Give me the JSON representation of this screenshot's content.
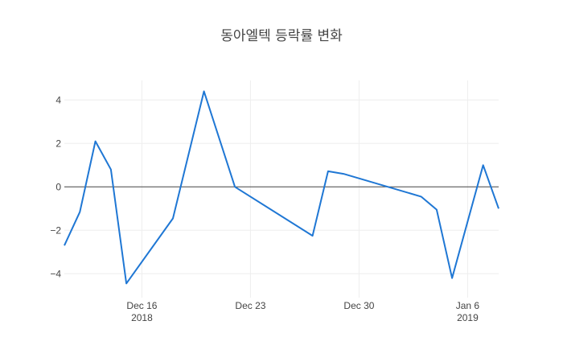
{
  "chart_data": {
    "type": "line",
    "title": "동아엘텍 등락률 변화",
    "xlabel": "",
    "ylabel": "",
    "x_range": [
      "2018-12-11",
      "2019-01-08"
    ],
    "ylim": [
      -5.1,
      4.9
    ],
    "y_ticks": [
      4,
      2,
      0,
      -2,
      -4
    ],
    "x_ticks": [
      {
        "date": "2018-12-16",
        "label": "Dec 16",
        "sublabel": "2018"
      },
      {
        "date": "2018-12-23",
        "label": "Dec 23",
        "sublabel": ""
      },
      {
        "date": "2018-12-30",
        "label": "Dec 30",
        "sublabel": ""
      },
      {
        "date": "2019-01-06",
        "label": "Jan 6",
        "sublabel": "2019"
      }
    ],
    "grid": true,
    "zero_line": true,
    "line_color": "#1f77d4",
    "series": [
      {
        "x": [
          "2018-12-11",
          "2018-12-12",
          "2018-12-13",
          "2018-12-14",
          "2018-12-15",
          "2018-12-18",
          "2018-12-20",
          "2018-12-22",
          "2018-12-27",
          "2018-12-28",
          "2018-12-29",
          "2019-01-03",
          "2019-01-04",
          "2019-01-05",
          "2019-01-07",
          "2019-01-08"
        ],
        "values": [
          -2.7,
          -1.15,
          2.1,
          0.8,
          -4.45,
          -1.45,
          4.4,
          0.0,
          -2.25,
          0.72,
          0.6,
          -0.45,
          -1.05,
          -4.2,
          1.0,
          -1.0
        ]
      }
    ]
  }
}
